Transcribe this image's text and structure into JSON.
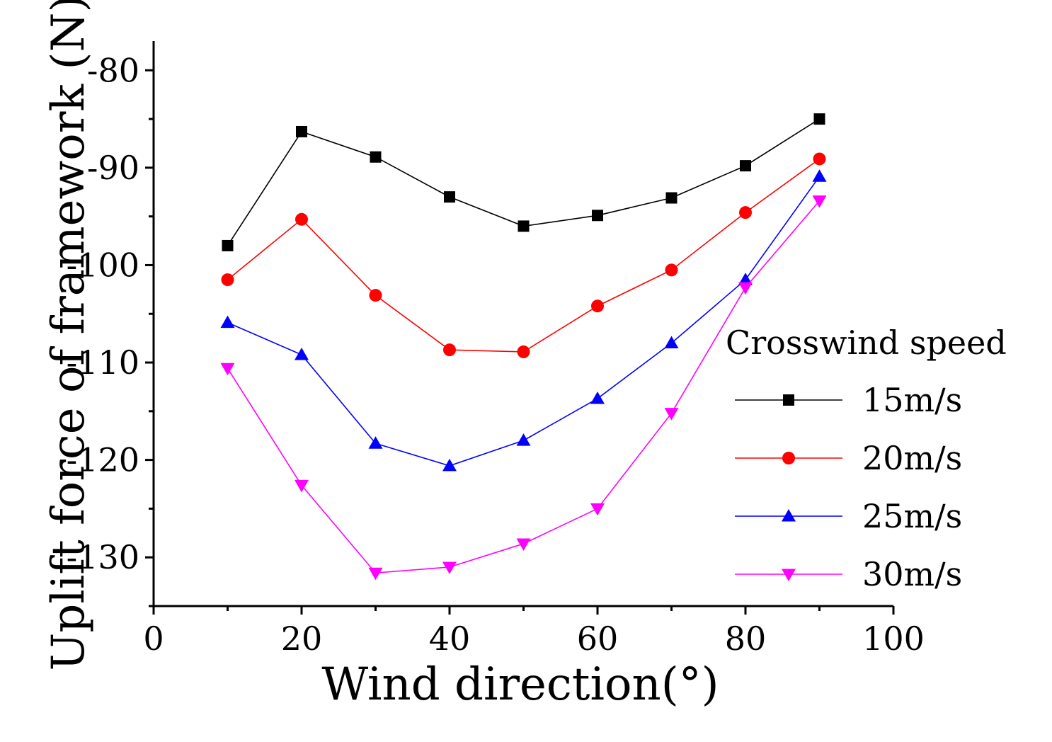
{
  "chart_data": {
    "type": "line",
    "title": "",
    "xlabel": "Wind direction(°)",
    "ylabel": "Uplift force of framework (N)",
    "xlim": [
      0,
      100
    ],
    "ylim": [
      -135,
      -77
    ],
    "xticks": [
      "0",
      "20",
      "40",
      "60",
      "80",
      "100"
    ],
    "yticks": [
      "-80",
      "-90",
      "-100",
      "-110",
      "-120",
      "-130"
    ],
    "grid": false,
    "legend_position": "right",
    "legend_title": "Crosswind speed",
    "x": [
      10,
      20,
      30,
      40,
      50,
      60,
      70,
      80,
      90
    ],
    "series": [
      {
        "name": "15m/s",
        "color": "#000000",
        "marker": "square",
        "values": [
          -98.0,
          -86.3,
          -88.9,
          -93.0,
          -96.0,
          -94.9,
          -93.1,
          -89.8,
          -85.0
        ]
      },
      {
        "name": "20m/s",
        "color": "#ff0000",
        "marker": "circle",
        "values": [
          -101.5,
          -95.3,
          -103.1,
          -108.7,
          -108.9,
          -104.2,
          -100.5,
          -94.6,
          -89.1
        ]
      },
      {
        "name": "25m/s",
        "color": "#0000ff",
        "marker": "triangle-up",
        "values": [
          -105.9,
          -109.2,
          -118.3,
          -120.6,
          -118.0,
          -113.7,
          -108.0,
          -101.5,
          -90.9
        ]
      },
      {
        "name": "30m/s",
        "color": "#ff00ff",
        "marker": "triangle-down",
        "values": [
          -110.6,
          -122.6,
          -131.6,
          -131.0,
          -128.6,
          -125.0,
          -115.2,
          -102.3,
          -93.4
        ]
      }
    ]
  }
}
